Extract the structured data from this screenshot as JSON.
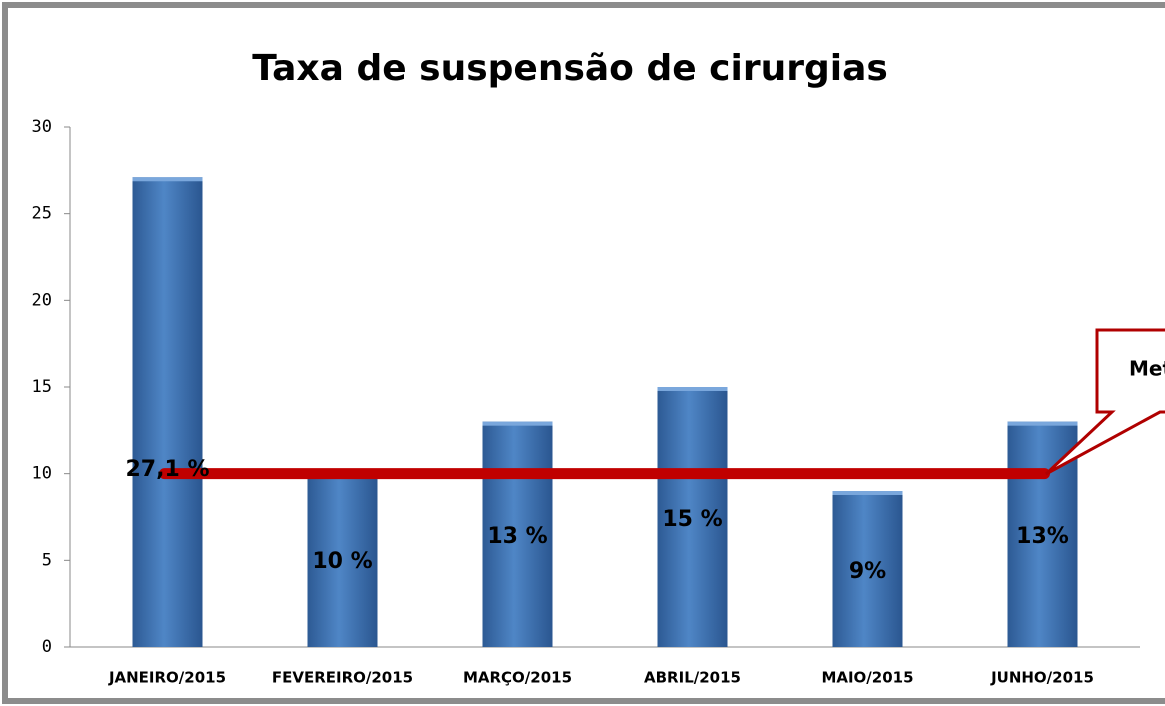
{
  "chart_data": {
    "type": "bar",
    "title": "Taxa de suspensão de cirurgias",
    "categories": [
      "JANEIRO/2015",
      "FEVEREIRO/2015",
      "MARÇO/2015",
      "ABRIL/2015",
      "MAIO/2015",
      "JUNHO/2015"
    ],
    "values": [
      27.1,
      10,
      13,
      15,
      9,
      13
    ],
    "value_labels": [
      "27,1 %",
      "10 %",
      "13 %",
      "15 %",
      "9%",
      "13%"
    ],
    "color": "#4a7ebb",
    "ylim": [
      0,
      30
    ],
    "yticks": [
      0,
      5,
      10,
      15,
      20,
      25,
      30
    ],
    "target": {
      "label": "Meta",
      "value": 10,
      "color": "#c00000"
    }
  }
}
